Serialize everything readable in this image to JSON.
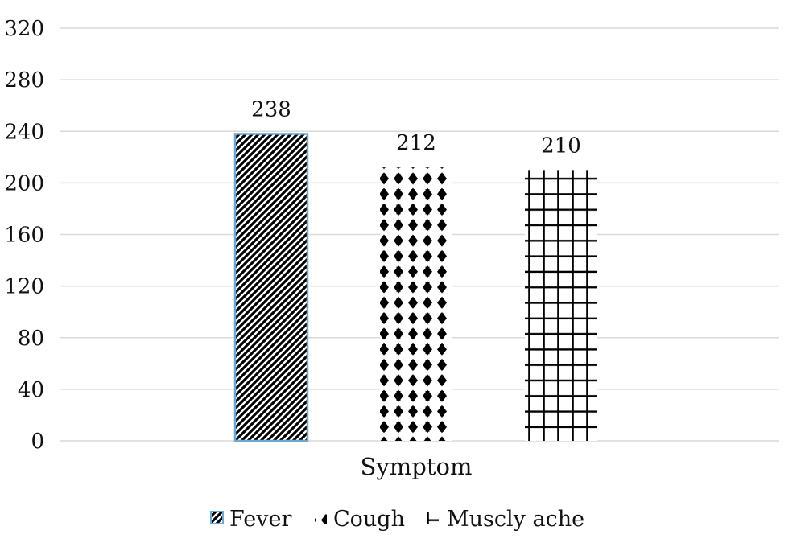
{
  "chart_data": {
    "type": "bar",
    "title": "",
    "xlabel": "",
    "ylabel": "",
    "categories": [
      "Symptom"
    ],
    "series": [
      {
        "name": "Fever",
        "values": [
          238
        ],
        "pattern": "diagonal-stripes",
        "border_color": "#6aa9d6"
      },
      {
        "name": "Cough",
        "values": [
          212
        ],
        "pattern": "diamond-dots"
      },
      {
        "name": "Muscly ache",
        "values": [
          210
        ],
        "pattern": "grid"
      }
    ],
    "ylim": [
      0,
      320
    ],
    "yticks": [
      0,
      40,
      80,
      120,
      160,
      200,
      240,
      280,
      320
    ],
    "grid": true,
    "legend": "bottom-center",
    "colors": {
      "grid": "#d9d9d9",
      "bar_ink": "#000000",
      "fever_border": "#6aa9d6"
    }
  }
}
